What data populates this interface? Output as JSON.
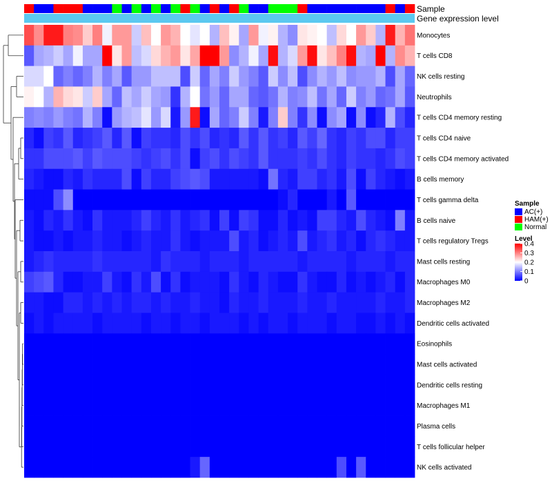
{
  "chart_data": {
    "type": "heatmap",
    "annotation_labels": {
      "sample": "Sample",
      "gene": "Gene expression level"
    },
    "rows": [
      "Monocytes",
      "T cells CD8",
      "NK cells resting",
      "Neutrophils",
      "T cells CD4 memory resting",
      "T cells CD4 naive",
      "T cells CD4 memory activated",
      "B cells memory",
      "T cells gamma delta",
      "B cells naive",
      "T cells regulatory  Tregs",
      "Mast cells resting",
      "Macrophages M0",
      "Macrophages M2",
      "Dendritic cells activated",
      "Eosinophils",
      "Mast cells activated",
      "Dendritic cells resting",
      "Macrophages M1",
      "Plasma cells",
      "T cells follicular helper",
      "NK cells activated"
    ],
    "samples": [
      "HAM(+)",
      "AC(+)",
      "AC(+)",
      "HAM(+)",
      "HAM(+)",
      "HAM(+)",
      "AC(+)",
      "AC(+)",
      "AC(+)",
      "Normal",
      "AC(+)",
      "Normal",
      "AC(+)",
      "Normal",
      "AC(+)",
      "Normal",
      "HAM(+)",
      "Normal",
      "AC(+)",
      "HAM(+)",
      "AC(+)",
      "HAM(+)",
      "Normal",
      "AC(+)",
      "AC(+)",
      "Normal",
      "Normal",
      "Normal",
      "HAM(+)",
      "AC(+)",
      "AC(+)",
      "AC(+)",
      "AC(+)",
      "AC(+)",
      "AC(+)",
      "AC(+)",
      "AC(+)",
      "HAM(+)",
      "AC(+)",
      "HAM(+)"
    ],
    "values": [
      [
        0.34,
        0.29,
        0.38,
        0.38,
        0.3,
        0.29,
        0.24,
        0.3,
        0.19,
        0.28,
        0.28,
        0.16,
        0.25,
        0.2,
        0.28,
        0.26,
        0.2,
        0.18,
        0.2,
        0.14,
        0.25,
        0.21,
        0.13,
        0.28,
        0.19,
        0.21,
        0.14,
        0.11,
        0.22,
        0.21,
        0.2,
        0.15,
        0.23,
        0.2,
        0.28,
        0.24,
        0.14,
        0.38,
        0.26,
        0.31
      ],
      [
        0.07,
        0.13,
        0.14,
        0.16,
        0.13,
        0.19,
        0.13,
        0.13,
        0.4,
        0.22,
        0.28,
        0.15,
        0.17,
        0.23,
        0.26,
        0.28,
        0.22,
        0.27,
        0.4,
        0.4,
        0.28,
        0.11,
        0.14,
        0.19,
        0.13,
        0.39,
        0.14,
        0.17,
        0.28,
        0.39,
        0.22,
        0.25,
        0.3,
        0.39,
        0.14,
        0.13,
        0.4,
        0.14,
        0.29,
        0.26
      ],
      [
        0.17,
        0.17,
        0.2,
        0.08,
        0.1,
        0.08,
        0.1,
        0.14,
        0.1,
        0.13,
        0.07,
        0.12,
        0.12,
        0.15,
        0.15,
        0.15,
        0.06,
        0.16,
        0.08,
        0.13,
        0.1,
        0.16,
        0.12,
        0.1,
        0.07,
        0.16,
        0.11,
        0.15,
        0.06,
        0.11,
        0.14,
        0.12,
        0.15,
        0.11,
        0.12,
        0.12,
        0.14,
        0.06,
        0.13,
        0.08
      ],
      [
        0.21,
        0.2,
        0.14,
        0.26,
        0.23,
        0.22,
        0.16,
        0.24,
        0.13,
        0.08,
        0.15,
        0.13,
        0.16,
        0.13,
        0.12,
        0.04,
        0.14,
        0.2,
        0.09,
        0.12,
        0.08,
        0.13,
        0.13,
        0.08,
        0.07,
        0.09,
        0.14,
        0.1,
        0.11,
        0.15,
        0.09,
        0.13,
        0.08,
        0.16,
        0.1,
        0.12,
        0.08,
        0.09,
        0.13,
        0.07
      ],
      [
        0.1,
        0.11,
        0.1,
        0.12,
        0.1,
        0.09,
        0.14,
        0.1,
        0.01,
        0.12,
        0.14,
        0.15,
        0.18,
        0.12,
        0.17,
        0.02,
        0.12,
        0.38,
        0.01,
        0.13,
        0.08,
        0.1,
        0.16,
        0.1,
        0.02,
        0.1,
        0.24,
        0.1,
        0.04,
        0.11,
        0.01,
        0.11,
        0.13,
        0.01,
        0.11,
        0.01,
        0.03,
        0.14,
        0.06,
        0.03
      ],
      [
        0.03,
        0.01,
        0.05,
        0.04,
        0.07,
        0.03,
        0.04,
        0.05,
        0.07,
        0.03,
        0.07,
        0.01,
        0.05,
        0.04,
        0.04,
        0.03,
        0.06,
        0.04,
        0.06,
        0.03,
        0.04,
        0.03,
        0.07,
        0.04,
        0.07,
        0.04,
        0.05,
        0.03,
        0.07,
        0.05,
        0.08,
        0.04,
        0.03,
        0.05,
        0.04,
        0.06,
        0.06,
        0.03,
        0.05,
        0.05
      ],
      [
        0.04,
        0.04,
        0.06,
        0.06,
        0.06,
        0.07,
        0.05,
        0.07,
        0.06,
        0.06,
        0.06,
        0.05,
        0.04,
        0.05,
        0.06,
        0.04,
        0.06,
        0.01,
        0.05,
        0.06,
        0.04,
        0.06,
        0.05,
        0.04,
        0.07,
        0.04,
        0.04,
        0.04,
        0.05,
        0.04,
        0.06,
        0.04,
        0.03,
        0.05,
        0.04,
        0.04,
        0.03,
        0.04,
        0.06,
        0.05
      ],
      [
        0.03,
        0.02,
        0.01,
        0.01,
        0.03,
        0.02,
        0.04,
        0.03,
        0.03,
        0.03,
        0.06,
        0.01,
        0.05,
        0.03,
        0.03,
        0.05,
        0.06,
        0.07,
        0.06,
        0.02,
        0.02,
        0.02,
        0.02,
        0.02,
        0.01,
        0.09,
        0.03,
        0.02,
        0.05,
        0.05,
        0.03,
        0.04,
        0.02,
        0.06,
        0.01,
        0.05,
        0.03,
        0.02,
        0.01,
        0.02
      ],
      [
        0.01,
        0.01,
        0.01,
        0.06,
        0.11,
        0.0,
        0.0,
        0.0,
        0.0,
        0.0,
        0.0,
        0.0,
        0.0,
        0.0,
        0.0,
        0.0,
        0.0,
        0.0,
        0.0,
        0.0,
        0.0,
        0.0,
        0.0,
        0.0,
        0.0,
        0.0,
        0.01,
        0.03,
        0.0,
        0.0,
        0.0,
        0.02,
        0.0,
        0.07,
        0.0,
        0.0,
        0.0,
        0.0,
        0.0,
        0.0
      ],
      [
        0.02,
        0.01,
        0.03,
        0.02,
        0.04,
        0.02,
        0.01,
        0.04,
        0.02,
        0.02,
        0.02,
        0.03,
        0.05,
        0.03,
        0.02,
        0.04,
        0.02,
        0.03,
        0.04,
        0.01,
        0.05,
        0.01,
        0.05,
        0.04,
        0.01,
        0.01,
        0.03,
        0.01,
        0.02,
        0.01,
        0.05,
        0.05,
        0.03,
        0.02,
        0.06,
        0.03,
        0.02,
        0.01,
        0.1,
        0.02
      ],
      [
        0.02,
        0.01,
        0.01,
        0.02,
        0.01,
        0.02,
        0.02,
        0.03,
        0.02,
        0.02,
        0.01,
        0.02,
        0.03,
        0.02,
        0.02,
        0.04,
        0.02,
        0.01,
        0.02,
        0.02,
        0.02,
        0.06,
        0.02,
        0.03,
        0.01,
        0.02,
        0.03,
        0.02,
        0.06,
        0.02,
        0.03,
        0.04,
        0.02,
        0.03,
        0.01,
        0.03,
        0.04,
        0.03,
        0.02,
        0.02
      ],
      [
        0.02,
        0.03,
        0.04,
        0.03,
        0.03,
        0.03,
        0.03,
        0.04,
        0.03,
        0.03,
        0.03,
        0.03,
        0.03,
        0.02,
        0.04,
        0.03,
        0.03,
        0.03,
        0.02,
        0.03,
        0.03,
        0.03,
        0.02,
        0.03,
        0.03,
        0.03,
        0.03,
        0.03,
        0.02,
        0.03,
        0.03,
        0.03,
        0.03,
        0.02,
        0.03,
        0.03,
        0.03,
        0.02,
        0.03,
        0.03
      ],
      [
        0.05,
        0.06,
        0.07,
        0.03,
        0.01,
        0.01,
        0.02,
        0.02,
        0.05,
        0.02,
        0.01,
        0.04,
        0.02,
        0.06,
        0.01,
        0.04,
        0.01,
        0.02,
        0.02,
        0.02,
        0.01,
        0.04,
        0.02,
        0.01,
        0.03,
        0.02,
        0.01,
        0.01,
        0.04,
        0.02,
        0.01,
        0.01,
        0.03,
        0.01,
        0.02,
        0.01,
        0.02,
        0.03,
        0.01,
        0.03
      ],
      [
        0.02,
        0.02,
        0.01,
        0.01,
        0.03,
        0.03,
        0.02,
        0.03,
        0.02,
        0.03,
        0.02,
        0.03,
        0.03,
        0.02,
        0.03,
        0.02,
        0.02,
        0.03,
        0.02,
        0.02,
        0.01,
        0.03,
        0.02,
        0.02,
        0.03,
        0.02,
        0.02,
        0.02,
        0.03,
        0.02,
        0.02,
        0.03,
        0.02,
        0.02,
        0.02,
        0.02,
        0.03,
        0.02,
        0.02,
        0.03
      ],
      [
        0.01,
        0.02,
        0.01,
        0.02,
        0.02,
        0.02,
        0.02,
        0.01,
        0.02,
        0.02,
        0.02,
        0.02,
        0.01,
        0.02,
        0.02,
        0.01,
        0.02,
        0.02,
        0.01,
        0.02,
        0.02,
        0.02,
        0.01,
        0.02,
        0.01,
        0.02,
        0.02,
        0.01,
        0.02,
        0.02,
        0.02,
        0.01,
        0.02,
        0.02,
        0.01,
        0.01,
        0.02,
        0.01,
        0.02,
        0.01
      ],
      [
        0.0,
        0.0,
        0.0,
        0.0,
        0.0,
        0.0,
        0.0,
        0.0,
        0.0,
        0.0,
        0.0,
        0.0,
        0.0,
        0.0,
        0.0,
        0.0,
        0.0,
        0.0,
        0.0,
        0.0,
        0.0,
        0.0,
        0.0,
        0.0,
        0.0,
        0.0,
        0.0,
        0.0,
        0.0,
        0.0,
        0.0,
        0.0,
        0.0,
        0.0,
        0.0,
        0.0,
        0.0,
        0.0,
        0.0,
        0.0
      ],
      [
        0.0,
        0.0,
        0.0,
        0.0,
        0.0,
        0.0,
        0.0,
        0.0,
        0.0,
        0.0,
        0.0,
        0.0,
        0.0,
        0.0,
        0.0,
        0.0,
        0.0,
        0.0,
        0.0,
        0.0,
        0.0,
        0.0,
        0.0,
        0.0,
        0.0,
        0.0,
        0.0,
        0.0,
        0.0,
        0.0,
        0.0,
        0.0,
        0.0,
        0.0,
        0.0,
        0.0,
        0.0,
        0.0,
        0.0,
        0.0
      ],
      [
        0.0,
        0.0,
        0.0,
        0.0,
        0.0,
        0.0,
        0.0,
        0.0,
        0.0,
        0.0,
        0.0,
        0.0,
        0.0,
        0.0,
        0.0,
        0.0,
        0.0,
        0.0,
        0.0,
        0.0,
        0.0,
        0.0,
        0.0,
        0.0,
        0.0,
        0.0,
        0.0,
        0.0,
        0.0,
        0.0,
        0.0,
        0.0,
        0.0,
        0.0,
        0.0,
        0.0,
        0.0,
        0.0,
        0.0,
        0.0
      ],
      [
        0.0,
        0.0,
        0.0,
        0.0,
        0.0,
        0.0,
        0.0,
        0.0,
        0.0,
        0.0,
        0.0,
        0.0,
        0.0,
        0.0,
        0.0,
        0.0,
        0.0,
        0.0,
        0.0,
        0.0,
        0.0,
        0.0,
        0.0,
        0.0,
        0.0,
        0.0,
        0.0,
        0.0,
        0.0,
        0.0,
        0.0,
        0.0,
        0.0,
        0.0,
        0.0,
        0.0,
        0.0,
        0.0,
        0.0,
        0.0
      ],
      [
        0.0,
        0.0,
        0.0,
        0.0,
        0.0,
        0.0,
        0.0,
        0.0,
        0.0,
        0.0,
        0.0,
        0.0,
        0.0,
        0.0,
        0.0,
        0.0,
        0.0,
        0.0,
        0.0,
        0.0,
        0.0,
        0.0,
        0.0,
        0.0,
        0.0,
        0.0,
        0.0,
        0.0,
        0.0,
        0.0,
        0.0,
        0.0,
        0.0,
        0.0,
        0.0,
        0.0,
        0.0,
        0.0,
        0.0,
        0.0
      ],
      [
        0.0,
        0.0,
        0.0,
        0.0,
        0.0,
        0.0,
        0.0,
        0.0,
        0.0,
        0.0,
        0.0,
        0.0,
        0.0,
        0.0,
        0.0,
        0.0,
        0.0,
        0.0,
        0.0,
        0.0,
        0.0,
        0.0,
        0.0,
        0.0,
        0.0,
        0.0,
        0.0,
        0.0,
        0.0,
        0.0,
        0.0,
        0.0,
        0.0,
        0.0,
        0.0,
        0.0,
        0.0,
        0.0,
        0.0,
        0.0
      ],
      [
        0.0,
        0.0,
        0.0,
        0.0,
        0.0,
        0.0,
        0.0,
        0.0,
        0.0,
        0.0,
        0.0,
        0.0,
        0.0,
        0.0,
        0.0,
        0.0,
        0.0,
        0.02,
        0.08,
        0.0,
        0.0,
        0.0,
        0.0,
        0.0,
        0.0,
        0.0,
        0.0,
        0.0,
        0.0,
        0.0,
        0.0,
        0.0,
        0.06,
        0.0,
        0.07,
        0.0,
        0.0,
        0.0,
        0.0,
        0.0
      ]
    ],
    "color_scale": {
      "min": 0,
      "max": 0.4,
      "low": "#0000FF",
      "mid": "#FFFFFF",
      "high": "#FF0000"
    },
    "gene_expression_color": "#5BC8F0",
    "legend": {
      "sample_title": "Sample",
      "sample_entries": [
        {
          "label": "AC(+)",
          "color": "#0000FF"
        },
        {
          "label": "HAM(+)",
          "color": "#FF0000"
        },
        {
          "label": "Normal",
          "color": "#00FF00"
        }
      ],
      "level_title": "Level",
      "level_ticks": [
        "0.4",
        "0.3",
        "0.2",
        "0.1",
        "0"
      ],
      "level_tick_values": [
        0.4,
        0.3,
        0.2,
        0.1,
        0
      ],
      "placement": "right"
    }
  }
}
